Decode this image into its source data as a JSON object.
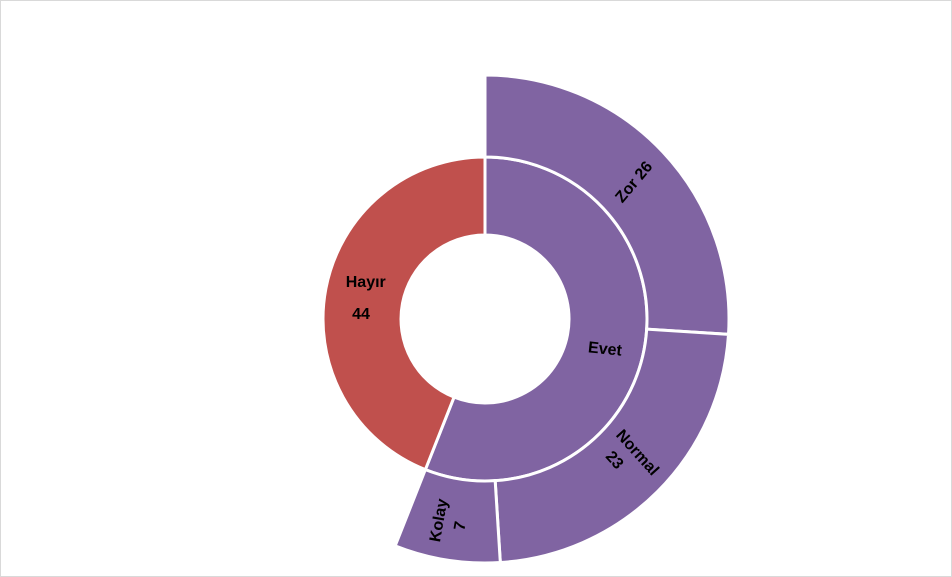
{
  "chart_data": {
    "type": "sunburst",
    "total": 100,
    "inner": [
      {
        "name": "Hayır",
        "value": 44,
        "color": "#c0504d"
      },
      {
        "name": "Evet",
        "value": 56,
        "color": "#8064a2"
      }
    ],
    "outer": [
      {
        "parent": "Evet",
        "name": "Zor",
        "value": 26,
        "color": "#8064a2"
      },
      {
        "parent": "Evet",
        "name": "Normal",
        "value": 23,
        "color": "#8064a2"
      },
      {
        "parent": "Evet",
        "name": "Kolay",
        "value": 7,
        "color": "#8064a2"
      }
    ],
    "labels": {
      "hayir": [
        "Hayır",
        "44"
      ],
      "evet": [
        "Evet"
      ],
      "zor": [
        "Zor 26"
      ],
      "normal": [
        "Normal",
        "23"
      ],
      "kolay": [
        "Kolay",
        "7"
      ]
    },
    "title": "",
    "legend": "none"
  }
}
